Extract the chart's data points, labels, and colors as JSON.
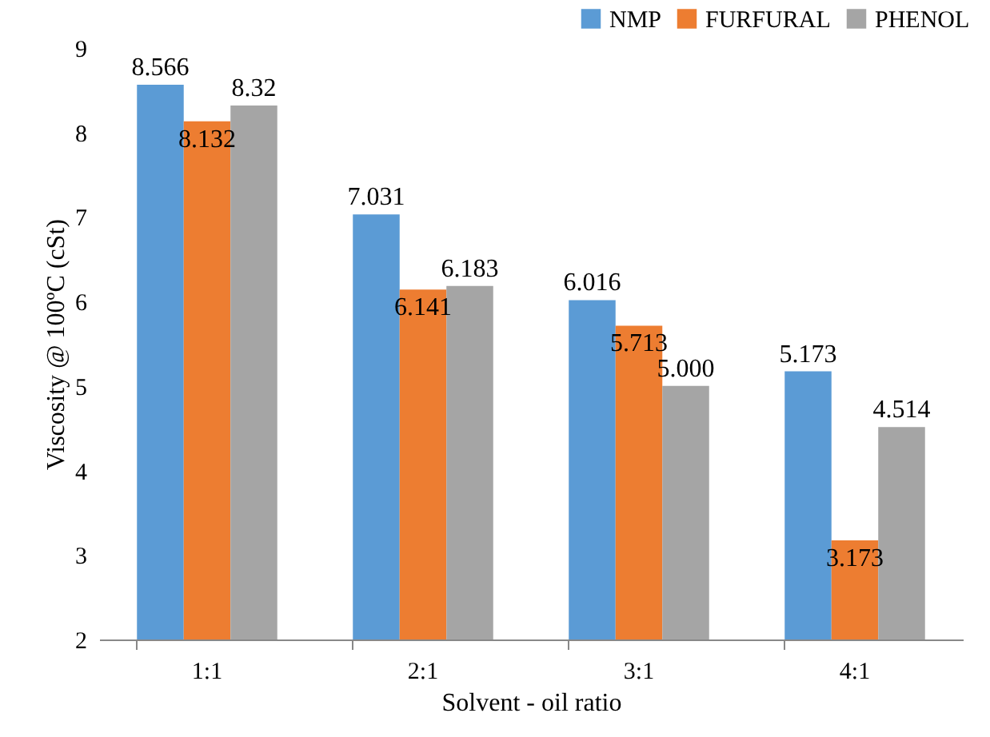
{
  "chart_data": {
    "type": "bar",
    "xlabel": "Solvent - oil ratio",
    "ylabel": "Viscosity @ 100ºC (cSt)",
    "categories": [
      "1:1",
      "2:1",
      "3:1",
      "4:1"
    ],
    "series": [
      {
        "name": "NMP",
        "color": "#5b9bd5",
        "values": [
          8.566,
          7.031,
          6.016,
          5.173
        ],
        "value_labels": [
          "8.566",
          "7.031",
          "6.016",
          "5.173"
        ]
      },
      {
        "name": "FURFURAL",
        "color": "#ed7d31",
        "values": [
          8.132,
          6.141,
          5.713,
          3.173
        ],
        "value_labels": [
          "8.132",
          "6.141",
          "5.713",
          "3.173"
        ]
      },
      {
        "name": "PHENOL",
        "color": "#a5a5a5",
        "values": [
          8.32,
          6.183,
          5.0,
          4.514
        ],
        "value_labels": [
          "8.32",
          "6.183",
          "5.000",
          "4.514"
        ]
      }
    ],
    "ylim": [
      2,
      9
    ],
    "yticks": [
      2,
      3,
      4,
      5,
      6,
      7,
      8,
      9
    ],
    "grid": false,
    "legend": "top right"
  }
}
